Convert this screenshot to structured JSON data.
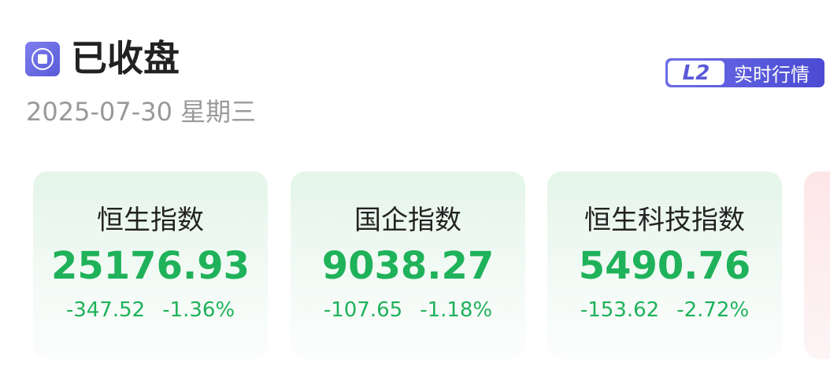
{
  "header": {
    "status": "已收盘",
    "date": "2025-07-30",
    "weekday": "星期三",
    "status_icon": "stop-circle-icon"
  },
  "badge": {
    "logo": "L2",
    "label": "实时行情",
    "color": "#5a5ad8"
  },
  "colors": {
    "down": "#1fb25a",
    "up": "#f04848"
  },
  "indices": [
    {
      "name": "恒生指数",
      "price": "25176.93",
      "change": "-347.52",
      "percent": "-1.36%"
    },
    {
      "name": "国企指数",
      "price": "9038.27",
      "change": "-107.65",
      "percent": "-1.18%"
    },
    {
      "name": "恒生科技指数",
      "price": "5490.76",
      "change": "-153.62",
      "percent": "-2.72%"
    }
  ]
}
